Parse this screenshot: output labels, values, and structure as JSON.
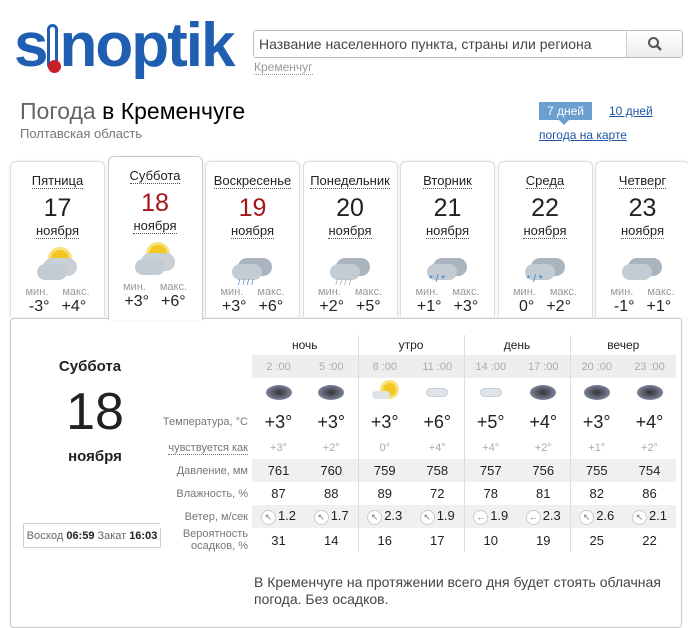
{
  "logo": "sinoptik",
  "search": {
    "placeholder": "Название населенного пункта, страны или региона",
    "recent": "Кременчуг",
    "button_icon": "search-icon"
  },
  "header": {
    "title_gray": "Погода",
    "title_black": "в Кременчуге",
    "region": "Полтавская область",
    "days7": "7 дней",
    "days10": "10 дней",
    "map_link": "погода на карте"
  },
  "colors": {
    "brand": "#1f5eb0",
    "weekend": "#a4161a",
    "link": "#1e56a0",
    "active_tab": "#6a9fd0"
  },
  "days": [
    {
      "name": "Пятница",
      "num": "17",
      "month": "ноября",
      "icon": "partly-cloudy",
      "min_label": "мин.",
      "max_label": "макс.",
      "min": "-3°",
      "max": "+4°",
      "weekend": false
    },
    {
      "name": "Суббота",
      "num": "18",
      "month": "ноября",
      "icon": "partly-cloudy",
      "min_label": "мин.",
      "max_label": "макс.",
      "min": "+3°",
      "max": "+6°",
      "weekend": true,
      "active": true
    },
    {
      "name": "Воскресенье",
      "num": "19",
      "month": "ноября",
      "icon": "rain",
      "min_label": "мин.",
      "max_label": "макс.",
      "min": "+3°",
      "max": "+6°",
      "weekend": true
    },
    {
      "name": "Понедельник",
      "num": "20",
      "month": "ноября",
      "icon": "light-rain",
      "min_label": "мин.",
      "max_label": "макс.",
      "min": "+2°",
      "max": "+5°",
      "weekend": false
    },
    {
      "name": "Вторник",
      "num": "21",
      "month": "ноября",
      "icon": "sleet",
      "min_label": "мин.",
      "max_label": "макс.",
      "min": "+1°",
      "max": "+3°",
      "weekend": false
    },
    {
      "name": "Среда",
      "num": "22",
      "month": "ноября",
      "icon": "sleet",
      "min_label": "мин.",
      "max_label": "макс.",
      "min": "0°",
      "max": "+2°",
      "weekend": false
    },
    {
      "name": "Четверг",
      "num": "23",
      "month": "ноября",
      "icon": "cloudy",
      "min_label": "мин.",
      "max_label": "макс.",
      "min": "-1°",
      "max": "+1°",
      "weekend": false
    }
  ],
  "detail": {
    "day_name": "Суббота",
    "day_num": "18",
    "month": "ноября",
    "sunrise_label": "Восход",
    "sunrise": "06:59",
    "sunset_label": "Закат",
    "sunset": "16:03",
    "periods": [
      "ночь",
      "утро",
      "день",
      "вечер"
    ],
    "times": [
      "2 :00",
      "5 :00",
      "8 :00",
      "11 :00",
      "14 :00",
      "17 :00",
      "20 :00",
      "23 :00"
    ],
    "icons": [
      "overcast",
      "overcast",
      "partly-sunny",
      "light-cloud",
      "light-cloud",
      "overcast",
      "overcast",
      "overcast-night"
    ],
    "labels": {
      "temp": "Температура, °C",
      "feels": "чувствуется как",
      "pressure": "Давление, мм",
      "humidity": "Влажность, %",
      "wind": "Ветер, м/сек",
      "precip": "Вероятность осадков, %"
    },
    "temp": [
      "+3°",
      "+3°",
      "+3°",
      "+6°",
      "+5°",
      "+4°",
      "+3°",
      "+4°"
    ],
    "feels": [
      "+3°",
      "+2°",
      "0°",
      "+4°",
      "+4°",
      "+2°",
      "+1°",
      "+2°"
    ],
    "pressure": [
      "761",
      "760",
      "759",
      "758",
      "757",
      "756",
      "755",
      "754"
    ],
    "humidity": [
      "87",
      "88",
      "89",
      "72",
      "78",
      "81",
      "82",
      "86"
    ],
    "wind_dir": [
      "↖",
      "↖",
      "↖",
      "↖",
      "←",
      "←",
      "↖",
      "↖"
    ],
    "wind": [
      "1.2",
      "1.7",
      "2.3",
      "1.9",
      "1.9",
      "2.3",
      "2.6",
      "2.1"
    ],
    "precip": [
      "31",
      "14",
      "16",
      "17",
      "10",
      "19",
      "25",
      "22"
    ],
    "description": "В Кременчуге на протяжении всего дня будет стоять облачная погода. Без осадков."
  }
}
